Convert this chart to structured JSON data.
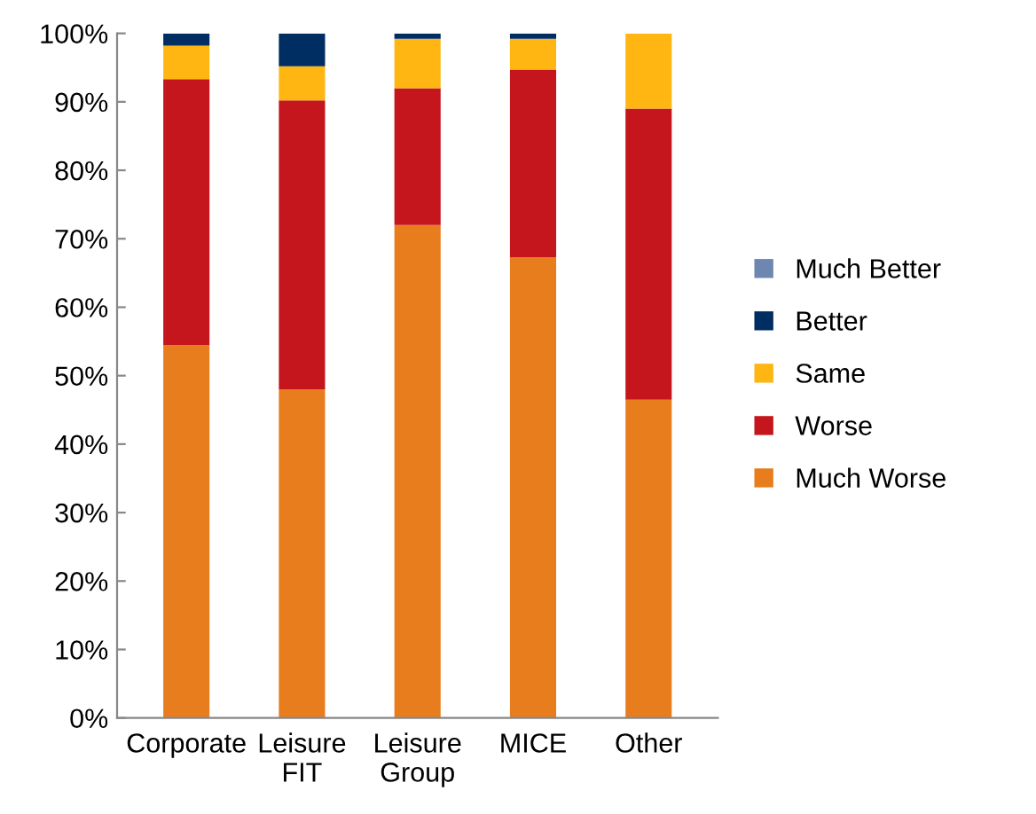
{
  "chart_data": {
    "type": "bar",
    "stacked": true,
    "categories": [
      "Corporate",
      "Leisure\nFIT",
      "Leisure\nGroup",
      "MICE",
      "Other"
    ],
    "series": [
      {
        "name": "Much Worse",
        "color": "#e87d1e",
        "values": [
          54.5,
          48,
          72,
          67.3,
          46.5
        ]
      },
      {
        "name": "Worse",
        "color": "#c4161c",
        "values": [
          38.8,
          42.2,
          20,
          27.4,
          42.5
        ]
      },
      {
        "name": "Same",
        "color": "#ffb612",
        "values": [
          4.9,
          5.0,
          7.2,
          4.5,
          11
        ]
      },
      {
        "name": "Better",
        "color": "#002d62",
        "values": [
          1.8,
          4.8,
          0.8,
          0.8,
          0
        ]
      },
      {
        "name": "Much Better",
        "color": "#6d87b0",
        "values": [
          0,
          0,
          0,
          0,
          0
        ]
      }
    ],
    "ylim": [
      0,
      100
    ],
    "yticks": [
      {
        "value": 0,
        "label": "0%"
      },
      {
        "value": 10,
        "label": "10%"
      },
      {
        "value": 20,
        "label": "20%"
      },
      {
        "value": 30,
        "label": "30%"
      },
      {
        "value": 40,
        "label": "40%"
      },
      {
        "value": 50,
        "label": "50%"
      },
      {
        "value": 60,
        "label": "60%"
      },
      {
        "value": 70,
        "label": "70%"
      },
      {
        "value": 80,
        "label": "80%"
      },
      {
        "value": 90,
        "label": "90%"
      },
      {
        "value": 100,
        "label": "100%"
      }
    ],
    "grid": false,
    "legend": "right"
  }
}
